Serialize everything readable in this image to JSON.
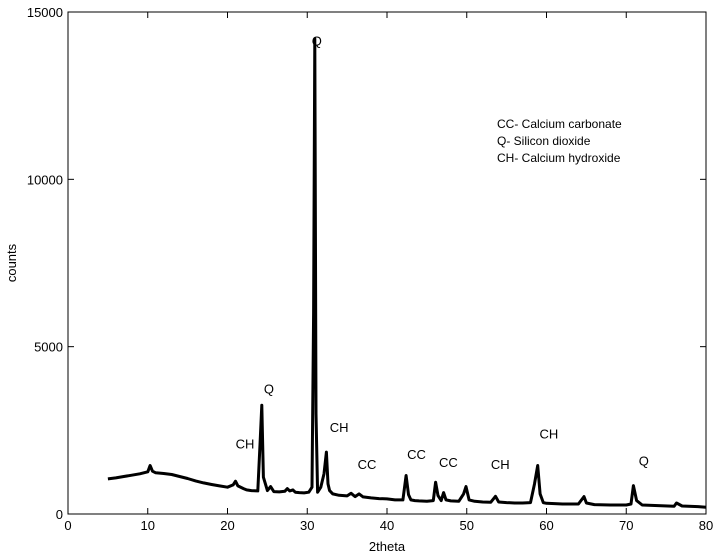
{
  "chart_data": {
    "type": "line",
    "title": "",
    "xlabel": "2theta",
    "ylabel": "counts",
    "xlim": [
      0,
      80
    ],
    "ylim": [
      0,
      15000
    ],
    "xticks": [
      0,
      10,
      20,
      30,
      40,
      50,
      60,
      70,
      80
    ],
    "yticks": [
      0,
      5000,
      10000,
      15000
    ],
    "grid": false,
    "line_color": "#000000",
    "series": [
      {
        "x": [
          5,
          6,
          7,
          8,
          9,
          10,
          10.3,
          10.6,
          11,
          12,
          13,
          14,
          15,
          16,
          17,
          18,
          19,
          20,
          20.7,
          21,
          21.3,
          22,
          22.4,
          23,
          23.8,
          24.1,
          24.3,
          24.5,
          25,
          25.4,
          25.8,
          26.5,
          27.2,
          27.5,
          27.8,
          28.2,
          28.5,
          29,
          29.6,
          30.2,
          30.6,
          30.8,
          30.95,
          31.1,
          31.3,
          31.7,
          32.1,
          32.4,
          32.6,
          32.8,
          33.2,
          34,
          35,
          35.5,
          36,
          36.5,
          37,
          38,
          39,
          40,
          41,
          42,
          42.4,
          42.7,
          43,
          43.5,
          44,
          45,
          45.8,
          46.1,
          46.4,
          46.8,
          47.1,
          47.4,
          48,
          49,
          49.6,
          49.9,
          50.3,
          51,
          52,
          53,
          53.6,
          54,
          55,
          56,
          57,
          58,
          58.5,
          58.9,
          59.2,
          59.6,
          60,
          62,
          64,
          64.7,
          65,
          66,
          68,
          70,
          70.6,
          70.9,
          71.3,
          72,
          74,
          76,
          76.3,
          77,
          79,
          80
        ],
        "values": [
          1050,
          1080,
          1120,
          1160,
          1200,
          1260,
          1450,
          1280,
          1230,
          1210,
          1180,
          1120,
          1060,
          990,
          930,
          880,
          840,
          800,
          870,
          980,
          840,
          760,
          720,
          700,
          690,
          2200,
          3250,
          1100,
          700,
          820,
          670,
          660,
          680,
          760,
          690,
          720,
          650,
          640,
          630,
          650,
          800,
          6000,
          14200,
          3000,
          650,
          800,
          1200,
          1850,
          900,
          700,
          600,
          560,
          540,
          620,
          520,
          600,
          510,
          480,
          460,
          450,
          420,
          420,
          1150,
          580,
          420,
          400,
          390,
          380,
          400,
          950,
          550,
          400,
          640,
          420,
          390,
          380,
          600,
          820,
          420,
          380,
          360,
          350,
          530,
          360,
          340,
          330,
          330,
          340,
          900,
          1450,
          600,
          340,
          320,
          300,
          300,
          520,
          330,
          280,
          270,
          270,
          300,
          850,
          400,
          270,
          250,
          230,
          330,
          240,
          220,
          200
        ]
      }
    ],
    "peak_labels": [
      {
        "text": "Q",
        "x": 31.2,
        "y": 14000
      },
      {
        "text": "Q",
        "x": 25.2,
        "y": 3600
      },
      {
        "text": "CH",
        "x": 22.2,
        "y": 1950
      },
      {
        "text": "CH",
        "x": 34.0,
        "y": 2450
      },
      {
        "text": "CC",
        "x": 37.5,
        "y": 1350
      },
      {
        "text": "CC",
        "x": 43.7,
        "y": 1650
      },
      {
        "text": "CC",
        "x": 47.7,
        "y": 1400
      },
      {
        "text": "CH",
        "x": 54.2,
        "y": 1350
      },
      {
        "text": "CH",
        "x": 60.3,
        "y": 2250
      },
      {
        "text": "Q",
        "x": 72.2,
        "y": 1450
      }
    ],
    "legend_text": [
      "CC- Calcium carbonate",
      "Q- Silicon dioxide",
      "CH- Calcium hydroxide"
    ],
    "legend_position": "top-right"
  }
}
